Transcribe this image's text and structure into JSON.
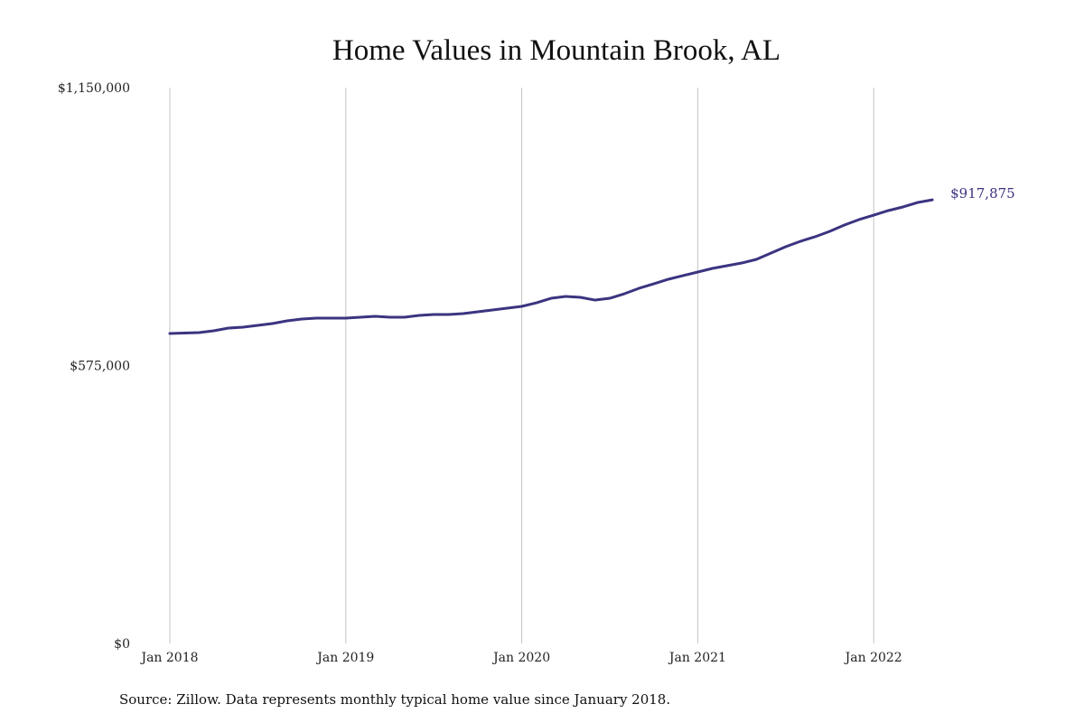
{
  "chart_data": {
    "type": "line",
    "title": "Home Values in Mountain Brook, AL",
    "xlabel": "",
    "ylabel": "",
    "ylim": [
      0,
      1150000
    ],
    "y_ticks": [
      0,
      575000,
      1150000
    ],
    "y_tick_labels": [
      "$0",
      "$575,000",
      "$1,150,000"
    ],
    "x_tick_labels": [
      "Jan 2018",
      "Jan 2019",
      "Jan 2020",
      "Jan 2021",
      "Jan 2022"
    ],
    "grid": "vertical at each January",
    "line_color": "#3b3480",
    "end_label": "$917,875",
    "x": [
      "2018-01",
      "2018-02",
      "2018-03",
      "2018-04",
      "2018-05",
      "2018-06",
      "2018-07",
      "2018-08",
      "2018-09",
      "2018-10",
      "2018-11",
      "2018-12",
      "2019-01",
      "2019-02",
      "2019-03",
      "2019-04",
      "2019-05",
      "2019-06",
      "2019-07",
      "2019-08",
      "2019-09",
      "2019-10",
      "2019-11",
      "2019-12",
      "2020-01",
      "2020-02",
      "2020-03",
      "2020-04",
      "2020-05",
      "2020-06",
      "2020-07",
      "2020-08",
      "2020-09",
      "2020-10",
      "2020-11",
      "2020-12",
      "2021-01",
      "2021-02",
      "2021-03",
      "2021-04",
      "2021-05",
      "2021-06",
      "2021-07",
      "2021-08",
      "2021-09",
      "2021-10",
      "2021-11",
      "2021-12",
      "2022-01",
      "2022-02",
      "2022-03",
      "2022-04",
      "2022-05"
    ],
    "series": [
      {
        "values": [
          641400,
          642300,
          643200,
          647000,
          652600,
          654400,
          658200,
          661900,
          667500,
          671300,
          673100,
          673100,
          673100,
          675000,
          676900,
          675000,
          675000,
          678700,
          680600,
          680600,
          682500,
          686200,
          690000,
          693700,
          697500,
          704900,
          714300,
          718000,
          716200,
          710500,
          714300,
          723600,
          734900,
          744200,
          753600,
          761100,
          768500,
          776000,
          781600,
          787200,
          794700,
          807800,
          820900,
          832100,
          841500,
          852700,
          865800,
          877000,
          886300,
          895700,
          903200,
          912500,
          917875
        ]
      }
    ]
  },
  "source_note": "Source: Zillow. Data represents monthly typical home value since January 2018."
}
